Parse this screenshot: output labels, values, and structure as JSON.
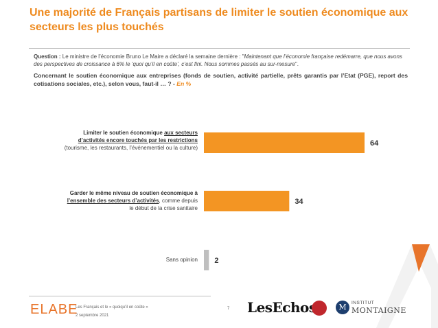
{
  "header": {
    "title": "Une majorité de Français partisans de limiter le soutien économique aux secteurs les plus touchés"
  },
  "question": {
    "label": "Question :",
    "intro": " Le ministre de l’économie Bruno Le Maire a déclaré la semaine dernière : \"",
    "quote": "Maintenant que l’économie française redémarre, que nous avons des perspectives de croissance à 6% le ‘quoi qu’il en coûte’, c’est fini. Nous sommes passés au sur-mesure",
    "outro": "\".",
    "concern": "Concernant le soutien économique aux entreprises (fonds de soutien, activité partielle, prêts garantis par l’Etat (PGE), report des cotisations sociales, etc.), selon vous, faut-il … ? - ",
    "unit": "En %"
  },
  "labels": {
    "opt1_lead": "Limiter le soutien économique ",
    "opt1_u1": "aux secteurs",
    "opt1_u2": "d’activités encore touchés par les restrictions",
    "opt1_sub": "(tourisme, les restaurants, l’événementiel ou la culture)",
    "opt2_line1": "Garder le même niveau de soutien économique à",
    "opt2_u": "l’ensemble des secteurs d’activités",
    "opt2_rest": ", comme depuis",
    "opt2_line3": "le début de la crise sanitaire",
    "opt3": "Sans opinion"
  },
  "chart_data": {
    "type": "bar",
    "orientation": "horizontal",
    "categories": [
      "Limiter le soutien économique aux secteurs d’activités encore touchés par les restrictions (tourisme, les restaurants, l’événementiel ou la culture)",
      "Garder le même niveau de soutien économique à l’ensemble des secteurs d’activités, comme depuis le début de la crise sanitaire",
      "Sans opinion"
    ],
    "values": [
      64,
      34,
      2
    ],
    "value_labels": [
      "64",
      "34",
      "2"
    ],
    "colors": [
      "#f39523",
      "#f39523",
      "#bfbfbf"
    ],
    "xlim": [
      0,
      100
    ],
    "grid": false,
    "legend": "none"
  },
  "footer": {
    "study": "Les Français et le « quoiqu’il en coûte »",
    "date": "2 septembre 2021",
    "page": "7",
    "elabe": "ELABE",
    "lesechos": "LesEchos",
    "institut": "INSTITUT",
    "montaigne": "MONTAIGNE",
    "m_letter": "M"
  }
}
